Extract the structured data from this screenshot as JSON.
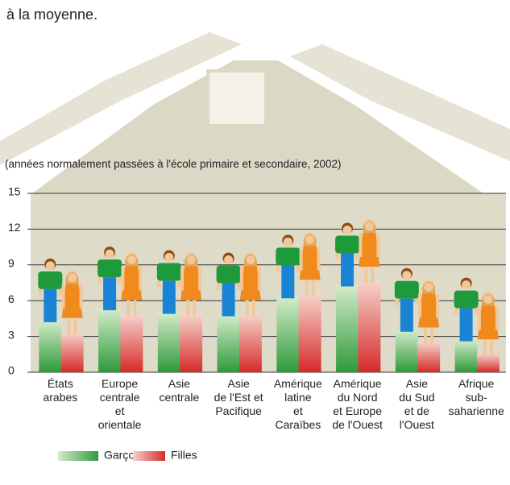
{
  "chart_data": {
    "type": "bar",
    "title": "à la moyenne.",
    "subtitle": "(années normalement passées à l'école primaire et secondaire, 2002)",
    "categories": [
      "États\narabes",
      "Europe\ncentrale\net\norientale",
      "Asie\ncentrale",
      "Asie\nde l'Est et\nPacifique",
      "Amérique\nlatine\net\nCaraïbes",
      "Amérique\ndu Nord\net Europe\nde l'Ouest",
      "Asie\ndu Sud\net de\nl'Ouest",
      "Afrique\nsub-\nsaharienne"
    ],
    "series": [
      {
        "name": "Garçons",
        "color": "#3ca83c",
        "values": [
          9.6,
          10.6,
          10.3,
          10.1,
          11.6,
          12.6,
          8.8,
          8.0
        ]
      },
      {
        "name": "Filles",
        "color": "#e03a3a",
        "values": [
          8.6,
          10.1,
          10.1,
          10.1,
          11.8,
          12.9,
          7.8,
          6.8
        ]
      }
    ],
    "ylim": [
      0,
      15
    ],
    "yticks": [
      0,
      3,
      6,
      9,
      12,
      15
    ],
    "grid": true
  }
}
